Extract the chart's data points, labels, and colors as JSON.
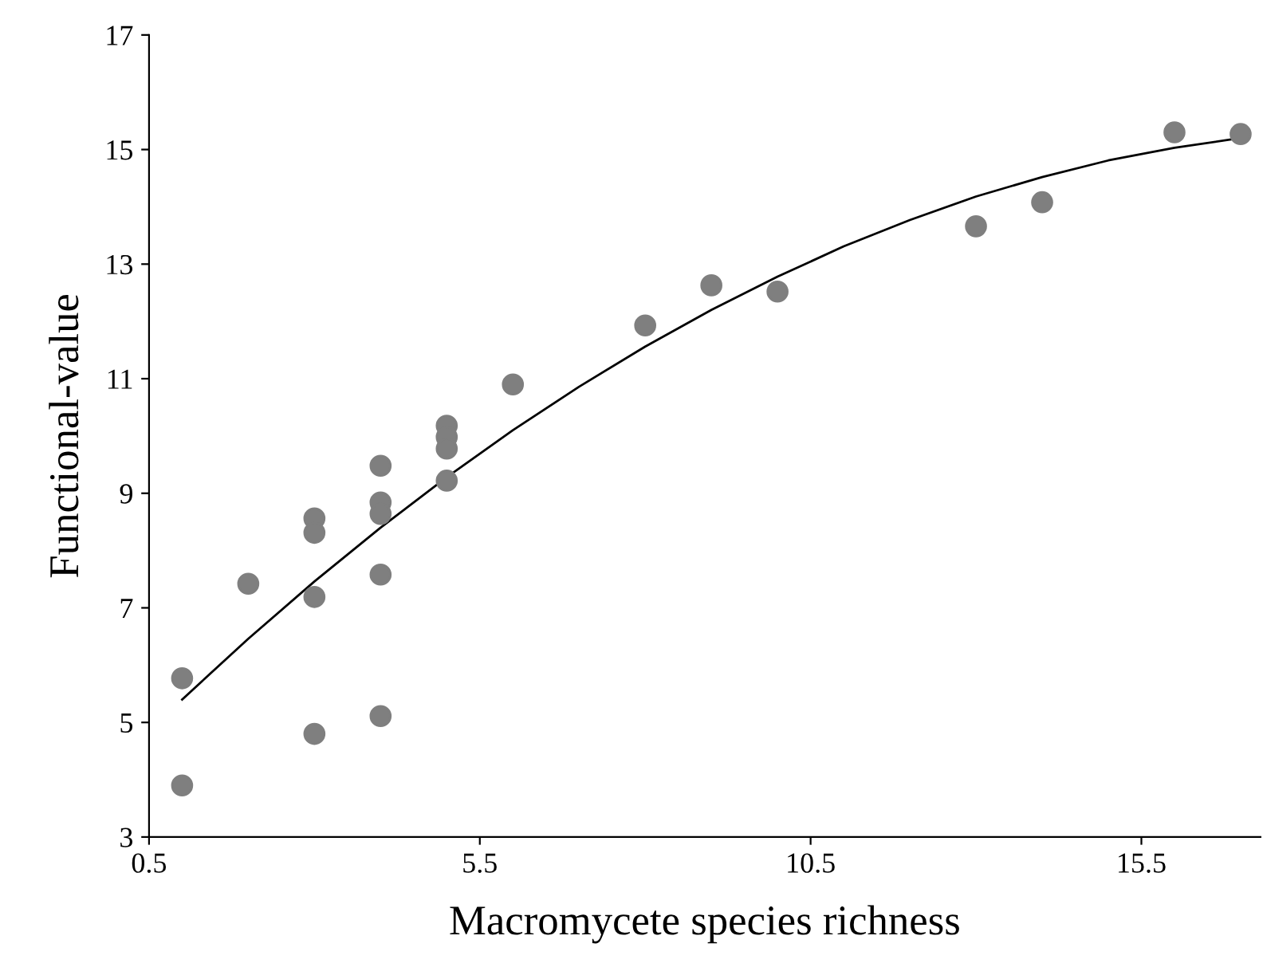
{
  "chart_data": {
    "type": "scatter",
    "xlabel": "Macromycete species richness",
    "ylabel": "Functional-value",
    "xlim": [
      0.5,
      17.3
    ],
    "xticks": [
      0.5,
      5.5,
      10.5,
      15.5
    ],
    "ylim": [
      3,
      17
    ],
    "yticks": [
      3,
      5,
      7,
      9,
      11,
      13,
      15,
      17
    ],
    "grid": false,
    "marker": "circle",
    "series": [
      {
        "color": "#7f7f7f",
        "x": [
          1,
          1,
          2,
          3,
          3,
          3,
          3,
          4,
          4,
          4,
          4,
          4,
          5,
          5,
          5,
          5,
          6,
          8,
          9,
          10,
          13,
          14,
          16,
          17
        ],
        "values": [
          5.77,
          3.9,
          7.42,
          8.56,
          8.31,
          7.19,
          4.8,
          9.48,
          8.84,
          8.64,
          7.58,
          5.11,
          10.18,
          9.98,
          9.78,
          9.22,
          10.9,
          11.93,
          12.63,
          12.52,
          13.66,
          14.08,
          15.3,
          15.27
        ]
      },
      {
        "type": "line",
        "color": "#000000",
        "marker": "none",
        "x": [
          1,
          2,
          3,
          4,
          5,
          6,
          7,
          8,
          9,
          10,
          11,
          12,
          13,
          14,
          15,
          16,
          17
        ],
        "values": [
          5.4,
          6.46,
          7.46,
          8.4,
          9.28,
          10.1,
          10.86,
          11.56,
          12.2,
          12.78,
          13.31,
          13.77,
          14.18,
          14.52,
          14.81,
          15.03,
          15.2
        ]
      }
    ]
  }
}
